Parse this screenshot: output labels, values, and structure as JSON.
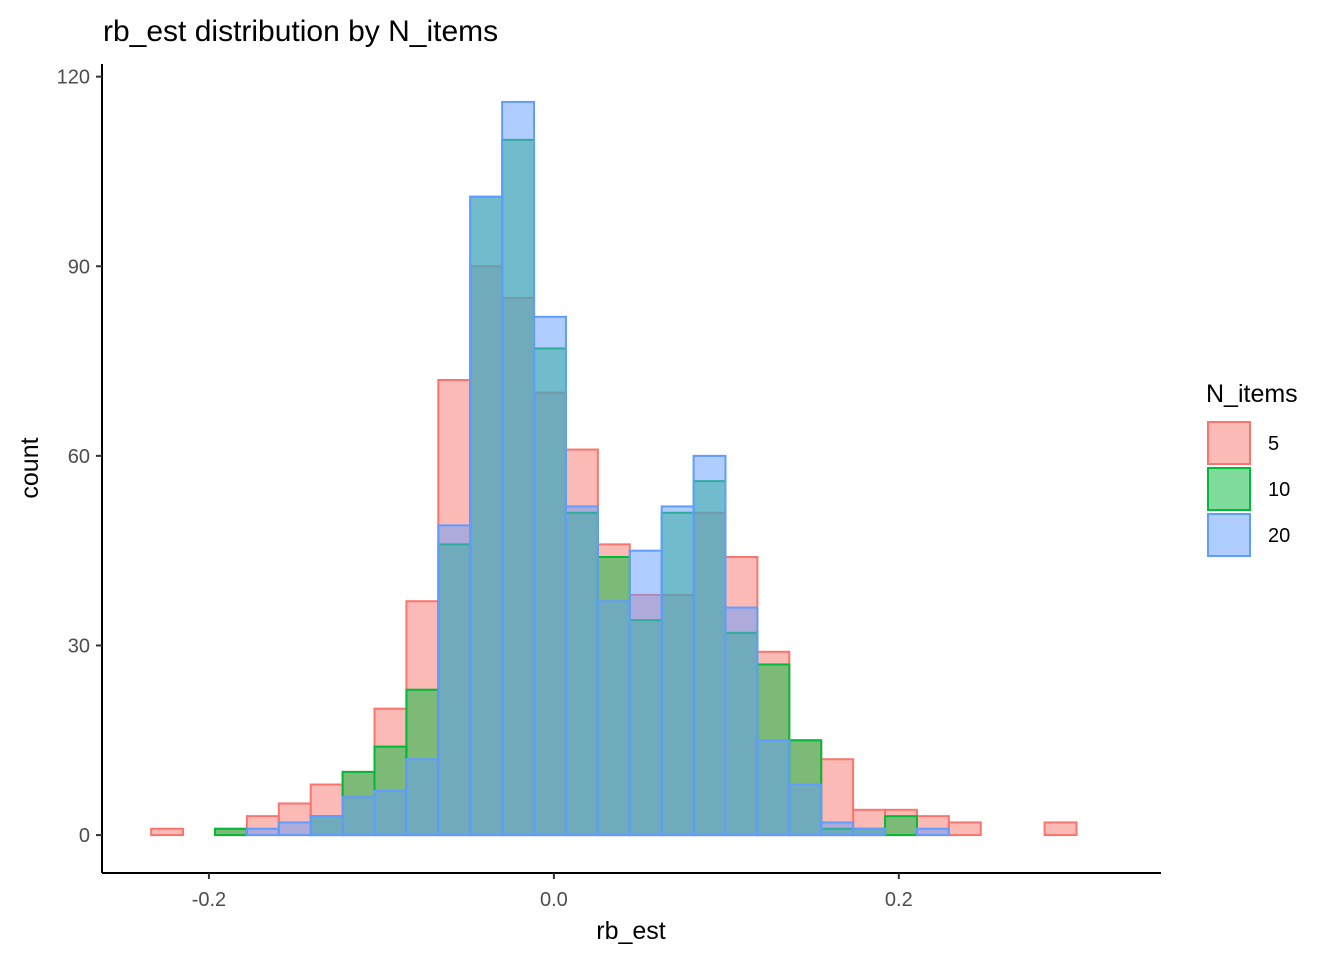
{
  "chart_data": {
    "type": "histogram",
    "title": "rb_est distribution by N_items",
    "xlabel": "rb_est",
    "ylabel": "count",
    "xlim": [
      -0.262,
      0.352
    ],
    "ylim": [
      -6,
      122
    ],
    "x_ticks": [
      {
        "value": -0.2,
        "label": "-0.2"
      },
      {
        "value": 0.0,
        "label": "0.0"
      },
      {
        "value": 0.2,
        "label": "0.2"
      }
    ],
    "y_ticks": [
      {
        "value": 0,
        "label": "0"
      },
      {
        "value": 30,
        "label": "30"
      },
      {
        "value": 60,
        "label": "60"
      },
      {
        "value": 90,
        "label": "90"
      },
      {
        "value": 120,
        "label": "120"
      }
    ],
    "grid": false,
    "bin_width": 0.0185,
    "bin_start": -0.2335,
    "legend": {
      "title": "N_items",
      "placement": "right"
    },
    "series": [
      {
        "name": "5",
        "fill": "#F8766D",
        "stroke": "#F8766D",
        "values": [
          1,
          0,
          1,
          3,
          5,
          8,
          10,
          20,
          37,
          72,
          90,
          85,
          70,
          61,
          46,
          38,
          38,
          51,
          44,
          29,
          15,
          12,
          4,
          4,
          3,
          2,
          0,
          0,
          2
        ]
      },
      {
        "name": "10",
        "fill": "#00BA38",
        "stroke": "#00BA38",
        "values": [
          0,
          0,
          1,
          0,
          0,
          3,
          10,
          14,
          23,
          46,
          101,
          110,
          77,
          51,
          44,
          34,
          51,
          56,
          32,
          27,
          15,
          1,
          1,
          3,
          0,
          0,
          0,
          0,
          0
        ]
      },
      {
        "name": "20",
        "fill": "#619CFF",
        "stroke": "#619CFF",
        "values": [
          0,
          0,
          0,
          1,
          2,
          3,
          6,
          7,
          12,
          49,
          101,
          116,
          82,
          52,
          37,
          45,
          52,
          60,
          36,
          15,
          8,
          2,
          1,
          0,
          1,
          0,
          0,
          0,
          0
        ]
      }
    ]
  }
}
